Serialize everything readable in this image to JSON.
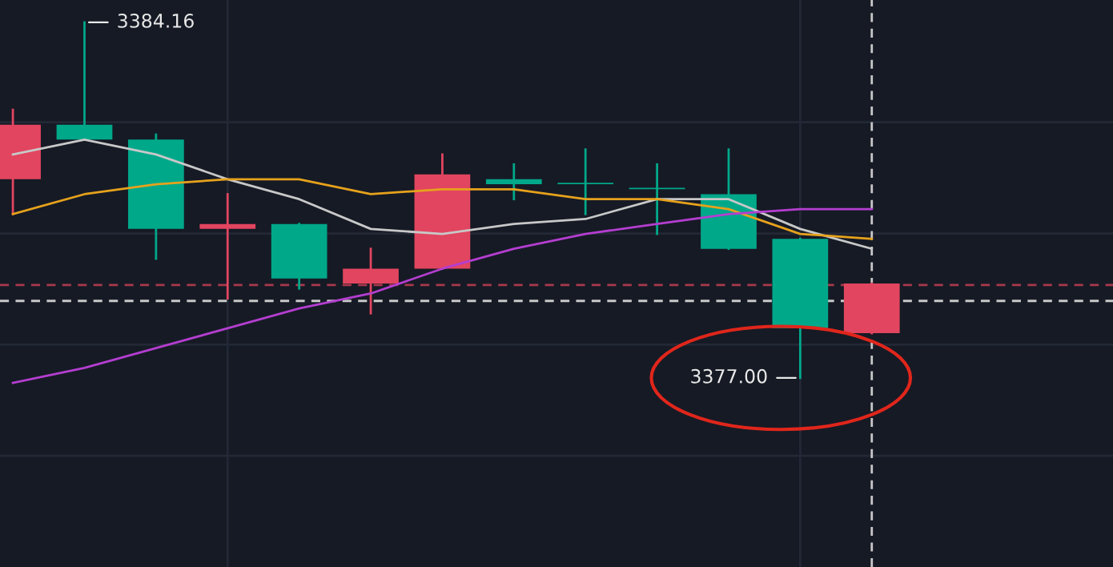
{
  "chart_data": {
    "type": "candlestick",
    "categories": [
      null,
      null,
      null,
      null,
      null,
      null,
      null,
      null,
      null,
      null,
      null,
      null,
      null
    ],
    "ohlc": [
      [
        3381.0,
        3382.4,
        3380.3,
        3382.1
      ],
      [
        3382.1,
        3384.16,
        3381.8,
        3381.8
      ],
      [
        3381.8,
        3381.9,
        3379.4,
        3380.0
      ],
      [
        3380.0,
        3380.7,
        3378.6,
        3380.1
      ],
      [
        3380.1,
        3380.1,
        3378.8,
        3379.0
      ],
      [
        3378.9,
        3379.6,
        3378.3,
        3379.2
      ],
      [
        3379.2,
        3381.5,
        3379.2,
        3381.1
      ],
      [
        3381.0,
        3381.3,
        3380.6,
        3380.9
      ],
      [
        3380.9,
        3381.6,
        3380.3,
        3380.9
      ],
      [
        3380.8,
        3381.3,
        3379.9,
        3380.8
      ],
      [
        3380.7,
        3381.6,
        3379.6,
        3379.6
      ],
      [
        3379.8,
        3379.8,
        3377.0,
        3378.0
      ],
      [
        3377.9,
        3378.9,
        3377.9,
        3378.9
      ]
    ],
    "colors": [
      "#e2455f",
      "#00a88a",
      "#00a88a",
      "#e2455f",
      "#00a88a",
      "#e2455f",
      "#e2455f",
      "#00a88a",
      "#00a88a",
      "#00a88a",
      "#00a88a",
      "#00a88a",
      "#e2455f"
    ],
    "series": [
      {
        "type": "line",
        "color": "#c8c8c8",
        "values": [
          3381.5,
          3381.8,
          3381.5,
          3381.0,
          3380.6,
          3380.0,
          3379.9,
          3380.1,
          3380.2,
          3380.6,
          3380.6,
          3380.0,
          3379.6
        ]
      },
      {
        "type": "line",
        "color": "#e6a21c",
        "values": [
          3380.3,
          3380.7,
          3380.9,
          3381.0,
          3381.0,
          3380.7,
          3380.8,
          3380.8,
          3380.6,
          3380.6,
          3380.4,
          3379.9,
          3379.8
        ]
      },
      {
        "type": "line",
        "color": "#b43ed0",
        "values": [
          3376.9,
          3377.2,
          3377.6,
          3378.0,
          3378.4,
          3378.7,
          3379.2,
          3379.6,
          3379.9,
          3380.1,
          3380.3,
          3380.4,
          3380.4
        ]
      }
    ],
    "ref_lines": [
      {
        "axis": "y",
        "value": 3378.87,
        "color": "#a8384c",
        "line_style": "dashed"
      },
      {
        "axis": "y",
        "value": 3378.55,
        "color": "#c8c8c8",
        "line_style": "dashed"
      }
    ],
    "annotations": [
      "3384.16",
      "3377.00"
    ],
    "grid": true
  }
}
